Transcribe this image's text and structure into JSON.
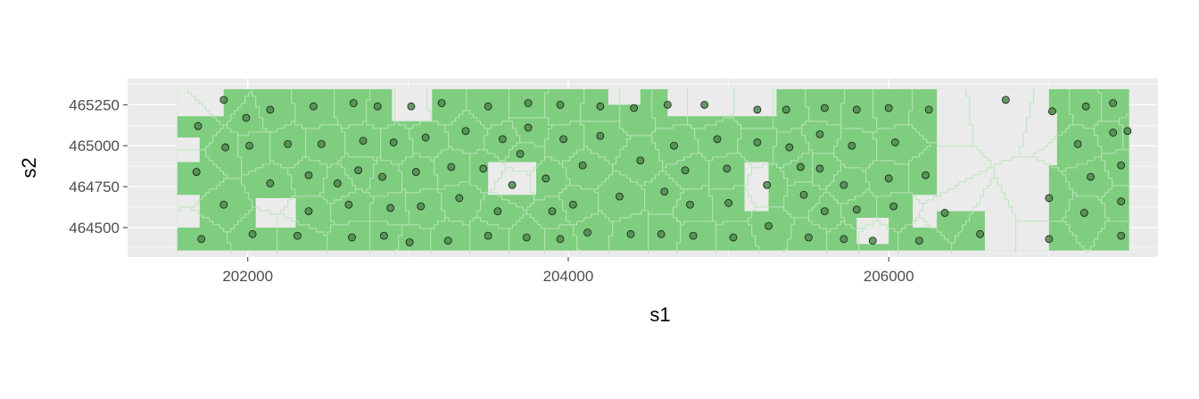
{
  "chart_data": {
    "type": "scatter",
    "xlabel": "s1",
    "ylabel": "s2",
    "x_ticks": [
      202000,
      204000,
      206000
    ],
    "y_ticks": [
      464500,
      464750,
      465000,
      465250
    ],
    "xlim": [
      201250,
      207680
    ],
    "ylim": [
      464320,
      465410
    ],
    "grid": true,
    "legend": "none",
    "colors": {
      "panel_background": "#ebebeb",
      "grid_major": "#ffffff",
      "fill": "#7fcd7f",
      "cell_border": "#b8e6b8",
      "point_fill": "#4d8a4d",
      "point_stroke": "#1a1a1a"
    },
    "fill_region": {
      "x_range": [
        201560,
        207500
      ],
      "y_range": [
        464360,
        465345
      ],
      "gaps": [
        {
          "x": [
            206300,
            207000
          ],
          "y": [
            464600,
            465345
          ]
        },
        {
          "x": [
            206600,
            207000
          ],
          "y": [
            464360,
            464600
          ]
        },
        {
          "x": [
            206750,
            207050
          ],
          "y": [
            464880,
            465200
          ]
        },
        {
          "x": [
            204620,
            205300
          ],
          "y": [
            465180,
            465345
          ]
        },
        {
          "x": [
            201560,
            201850
          ],
          "y": [
            465180,
            465345
          ]
        },
        {
          "x": [
            201560,
            201700
          ],
          "y": [
            464900,
            465050
          ]
        },
        {
          "x": [
            202050,
            202300
          ],
          "y": [
            464500,
            464680
          ]
        },
        {
          "x": [
            202900,
            203150
          ],
          "y": [
            465150,
            465345
          ]
        },
        {
          "x": [
            203500,
            203800
          ],
          "y": [
            464700,
            464900
          ]
        },
        {
          "x": [
            205100,
            205250
          ],
          "y": [
            464600,
            464900
          ]
        },
        {
          "x": [
            206150,
            206300
          ],
          "y": [
            464500,
            464700
          ]
        },
        {
          "x": [
            201560,
            201700
          ],
          "y": [
            464500,
            464700
          ]
        },
        {
          "x": [
            204250,
            204450
          ],
          "y": [
            465250,
            465345
          ]
        },
        {
          "x": [
            205800,
            206000
          ],
          "y": [
            464400,
            464560
          ]
        }
      ]
    },
    "points": [
      {
        "x": 201850,
        "y": 465280
      },
      {
        "x": 201690,
        "y": 465120
      },
      {
        "x": 201860,
        "y": 464990
      },
      {
        "x": 202140,
        "y": 465220
      },
      {
        "x": 202410,
        "y": 465240
      },
      {
        "x": 202660,
        "y": 465260
      },
      {
        "x": 202810,
        "y": 465240
      },
      {
        "x": 203020,
        "y": 465240
      },
      {
        "x": 203210,
        "y": 465260
      },
      {
        "x": 203500,
        "y": 465240
      },
      {
        "x": 203750,
        "y": 465260
      },
      {
        "x": 203950,
        "y": 465250
      },
      {
        "x": 204200,
        "y": 465240
      },
      {
        "x": 204410,
        "y": 465230
      },
      {
        "x": 204620,
        "y": 465250
      },
      {
        "x": 204850,
        "y": 465250
      },
      {
        "x": 205180,
        "y": 465220
      },
      {
        "x": 205360,
        "y": 465220
      },
      {
        "x": 205600,
        "y": 465230
      },
      {
        "x": 205800,
        "y": 465220
      },
      {
        "x": 206000,
        "y": 465230
      },
      {
        "x": 206250,
        "y": 465220
      },
      {
        "x": 206730,
        "y": 465280
      },
      {
        "x": 207020,
        "y": 465210
      },
      {
        "x": 207230,
        "y": 465240
      },
      {
        "x": 207400,
        "y": 465260
      },
      {
        "x": 201680,
        "y": 464840
      },
      {
        "x": 201990,
        "y": 465170
      },
      {
        "x": 202010,
        "y": 465000
      },
      {
        "x": 202250,
        "y": 465010
      },
      {
        "x": 202460,
        "y": 465010
      },
      {
        "x": 202720,
        "y": 465030
      },
      {
        "x": 202910,
        "y": 465020
      },
      {
        "x": 203110,
        "y": 465050
      },
      {
        "x": 203360,
        "y": 465090
      },
      {
        "x": 203590,
        "y": 465040
      },
      {
        "x": 203750,
        "y": 465110
      },
      {
        "x": 203970,
        "y": 465040
      },
      {
        "x": 204200,
        "y": 465060
      },
      {
        "x": 204450,
        "y": 464910
      },
      {
        "x": 204660,
        "y": 465000
      },
      {
        "x": 204930,
        "y": 465040
      },
      {
        "x": 205180,
        "y": 465020
      },
      {
        "x": 205380,
        "y": 464990
      },
      {
        "x": 205570,
        "y": 465070
      },
      {
        "x": 205770,
        "y": 465000
      },
      {
        "x": 206040,
        "y": 465020
      },
      {
        "x": 207180,
        "y": 465010
      },
      {
        "x": 207400,
        "y": 465080
      },
      {
        "x": 207490,
        "y": 465090
      },
      {
        "x": 202140,
        "y": 464770
      },
      {
        "x": 202380,
        "y": 464820
      },
      {
        "x": 202560,
        "y": 464770
      },
      {
        "x": 202690,
        "y": 464850
      },
      {
        "x": 202840,
        "y": 464810
      },
      {
        "x": 203050,
        "y": 464840
      },
      {
        "x": 203270,
        "y": 464870
      },
      {
        "x": 203470,
        "y": 464860
      },
      {
        "x": 203700,
        "y": 464950
      },
      {
        "x": 203860,
        "y": 464800
      },
      {
        "x": 204090,
        "y": 464880
      },
      {
        "x": 204730,
        "y": 464850
      },
      {
        "x": 204990,
        "y": 464860
      },
      {
        "x": 205240,
        "y": 464760
      },
      {
        "x": 205450,
        "y": 464870
      },
      {
        "x": 205570,
        "y": 464860
      },
      {
        "x": 205720,
        "y": 464760
      },
      {
        "x": 206000,
        "y": 464800
      },
      {
        "x": 206230,
        "y": 464820
      },
      {
        "x": 207260,
        "y": 464810
      },
      {
        "x": 207450,
        "y": 464880
      },
      {
        "x": 201850,
        "y": 464640
      },
      {
        "x": 202380,
        "y": 464600
      },
      {
        "x": 202630,
        "y": 464640
      },
      {
        "x": 202890,
        "y": 464620
      },
      {
        "x": 203080,
        "y": 464630
      },
      {
        "x": 203320,
        "y": 464680
      },
      {
        "x": 203560,
        "y": 464600
      },
      {
        "x": 203650,
        "y": 464760
      },
      {
        "x": 203900,
        "y": 464600
      },
      {
        "x": 204030,
        "y": 464640
      },
      {
        "x": 204320,
        "y": 464690
      },
      {
        "x": 204600,
        "y": 464720
      },
      {
        "x": 204760,
        "y": 464640
      },
      {
        "x": 205000,
        "y": 464650
      },
      {
        "x": 205250,
        "y": 464510
      },
      {
        "x": 205470,
        "y": 464700
      },
      {
        "x": 205600,
        "y": 464600
      },
      {
        "x": 205800,
        "y": 464610
      },
      {
        "x": 206030,
        "y": 464630
      },
      {
        "x": 206350,
        "y": 464590
      },
      {
        "x": 207000,
        "y": 464680
      },
      {
        "x": 207220,
        "y": 464590
      },
      {
        "x": 207450,
        "y": 464660
      },
      {
        "x": 201710,
        "y": 464430
      },
      {
        "x": 202030,
        "y": 464460
      },
      {
        "x": 202310,
        "y": 464450
      },
      {
        "x": 202650,
        "y": 464440
      },
      {
        "x": 202850,
        "y": 464450
      },
      {
        "x": 203010,
        "y": 464410
      },
      {
        "x": 203250,
        "y": 464420
      },
      {
        "x": 203500,
        "y": 464450
      },
      {
        "x": 203740,
        "y": 464440
      },
      {
        "x": 203950,
        "y": 464430
      },
      {
        "x": 204120,
        "y": 464470
      },
      {
        "x": 204390,
        "y": 464460
      },
      {
        "x": 204580,
        "y": 464460
      },
      {
        "x": 204780,
        "y": 464450
      },
      {
        "x": 205030,
        "y": 464440
      },
      {
        "x": 205500,
        "y": 464440
      },
      {
        "x": 205720,
        "y": 464430
      },
      {
        "x": 205900,
        "y": 464420
      },
      {
        "x": 206190,
        "y": 464420
      },
      {
        "x": 206570,
        "y": 464460
      },
      {
        "x": 207000,
        "y": 464430
      },
      {
        "x": 207450,
        "y": 464450
      }
    ]
  }
}
